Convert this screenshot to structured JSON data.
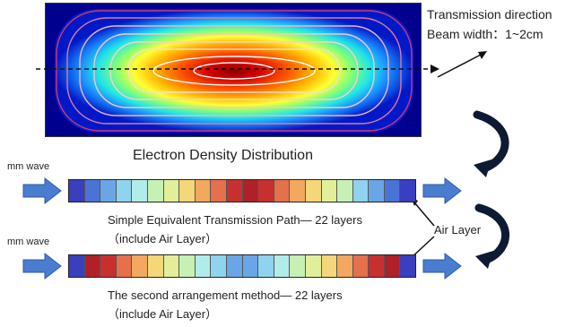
{
  "annotations": {
    "transmission_direction": "Transmission direction",
    "beam_width": "Beam width：1~2cm"
  },
  "title": "Electron Density Distribution",
  "input_label": "mm wave",
  "air_layer": "Air Layer",
  "strip1": {
    "caption_line1": "Simple Equivalent Transmission Path— 22 layers",
    "caption_line2": "（include Air Layer）",
    "colors": [
      "#3a3fbf",
      "#4b73d6",
      "#6aa6e6",
      "#8fd3ef",
      "#b2ecea",
      "#c6f0b4",
      "#e2ef9a",
      "#f3d778",
      "#f2a85f",
      "#e5704c",
      "#c8302f",
      "#b02028",
      "#c8302f",
      "#e5704c",
      "#f2a85f",
      "#f3d778",
      "#e2ef9a",
      "#c6f0b4",
      "#8fd3ef",
      "#6aa6e6",
      "#4b73d6",
      "#3a3fbf"
    ]
  },
  "strip2": {
    "caption_line1": "The second arrangement method— 22 layers",
    "caption_line2": "（include Air Layer）",
    "colors": [
      "#3a3fbf",
      "#b02028",
      "#c8302f",
      "#e5704c",
      "#f2a85f",
      "#f3d778",
      "#e2ef9a",
      "#c6f0b4",
      "#b2ecea",
      "#8fd3ef",
      "#6aa6e6",
      "#6aa6e6",
      "#8fd3ef",
      "#b2ecea",
      "#c6f0b4",
      "#e2ef9a",
      "#f3d778",
      "#f2a85f",
      "#e5704c",
      "#c8302f",
      "#b02028",
      "#3a3fbf"
    ]
  },
  "colors": {
    "arrow_fill": "#4a7dd0",
    "curved_arrow": "#0d1a33"
  }
}
